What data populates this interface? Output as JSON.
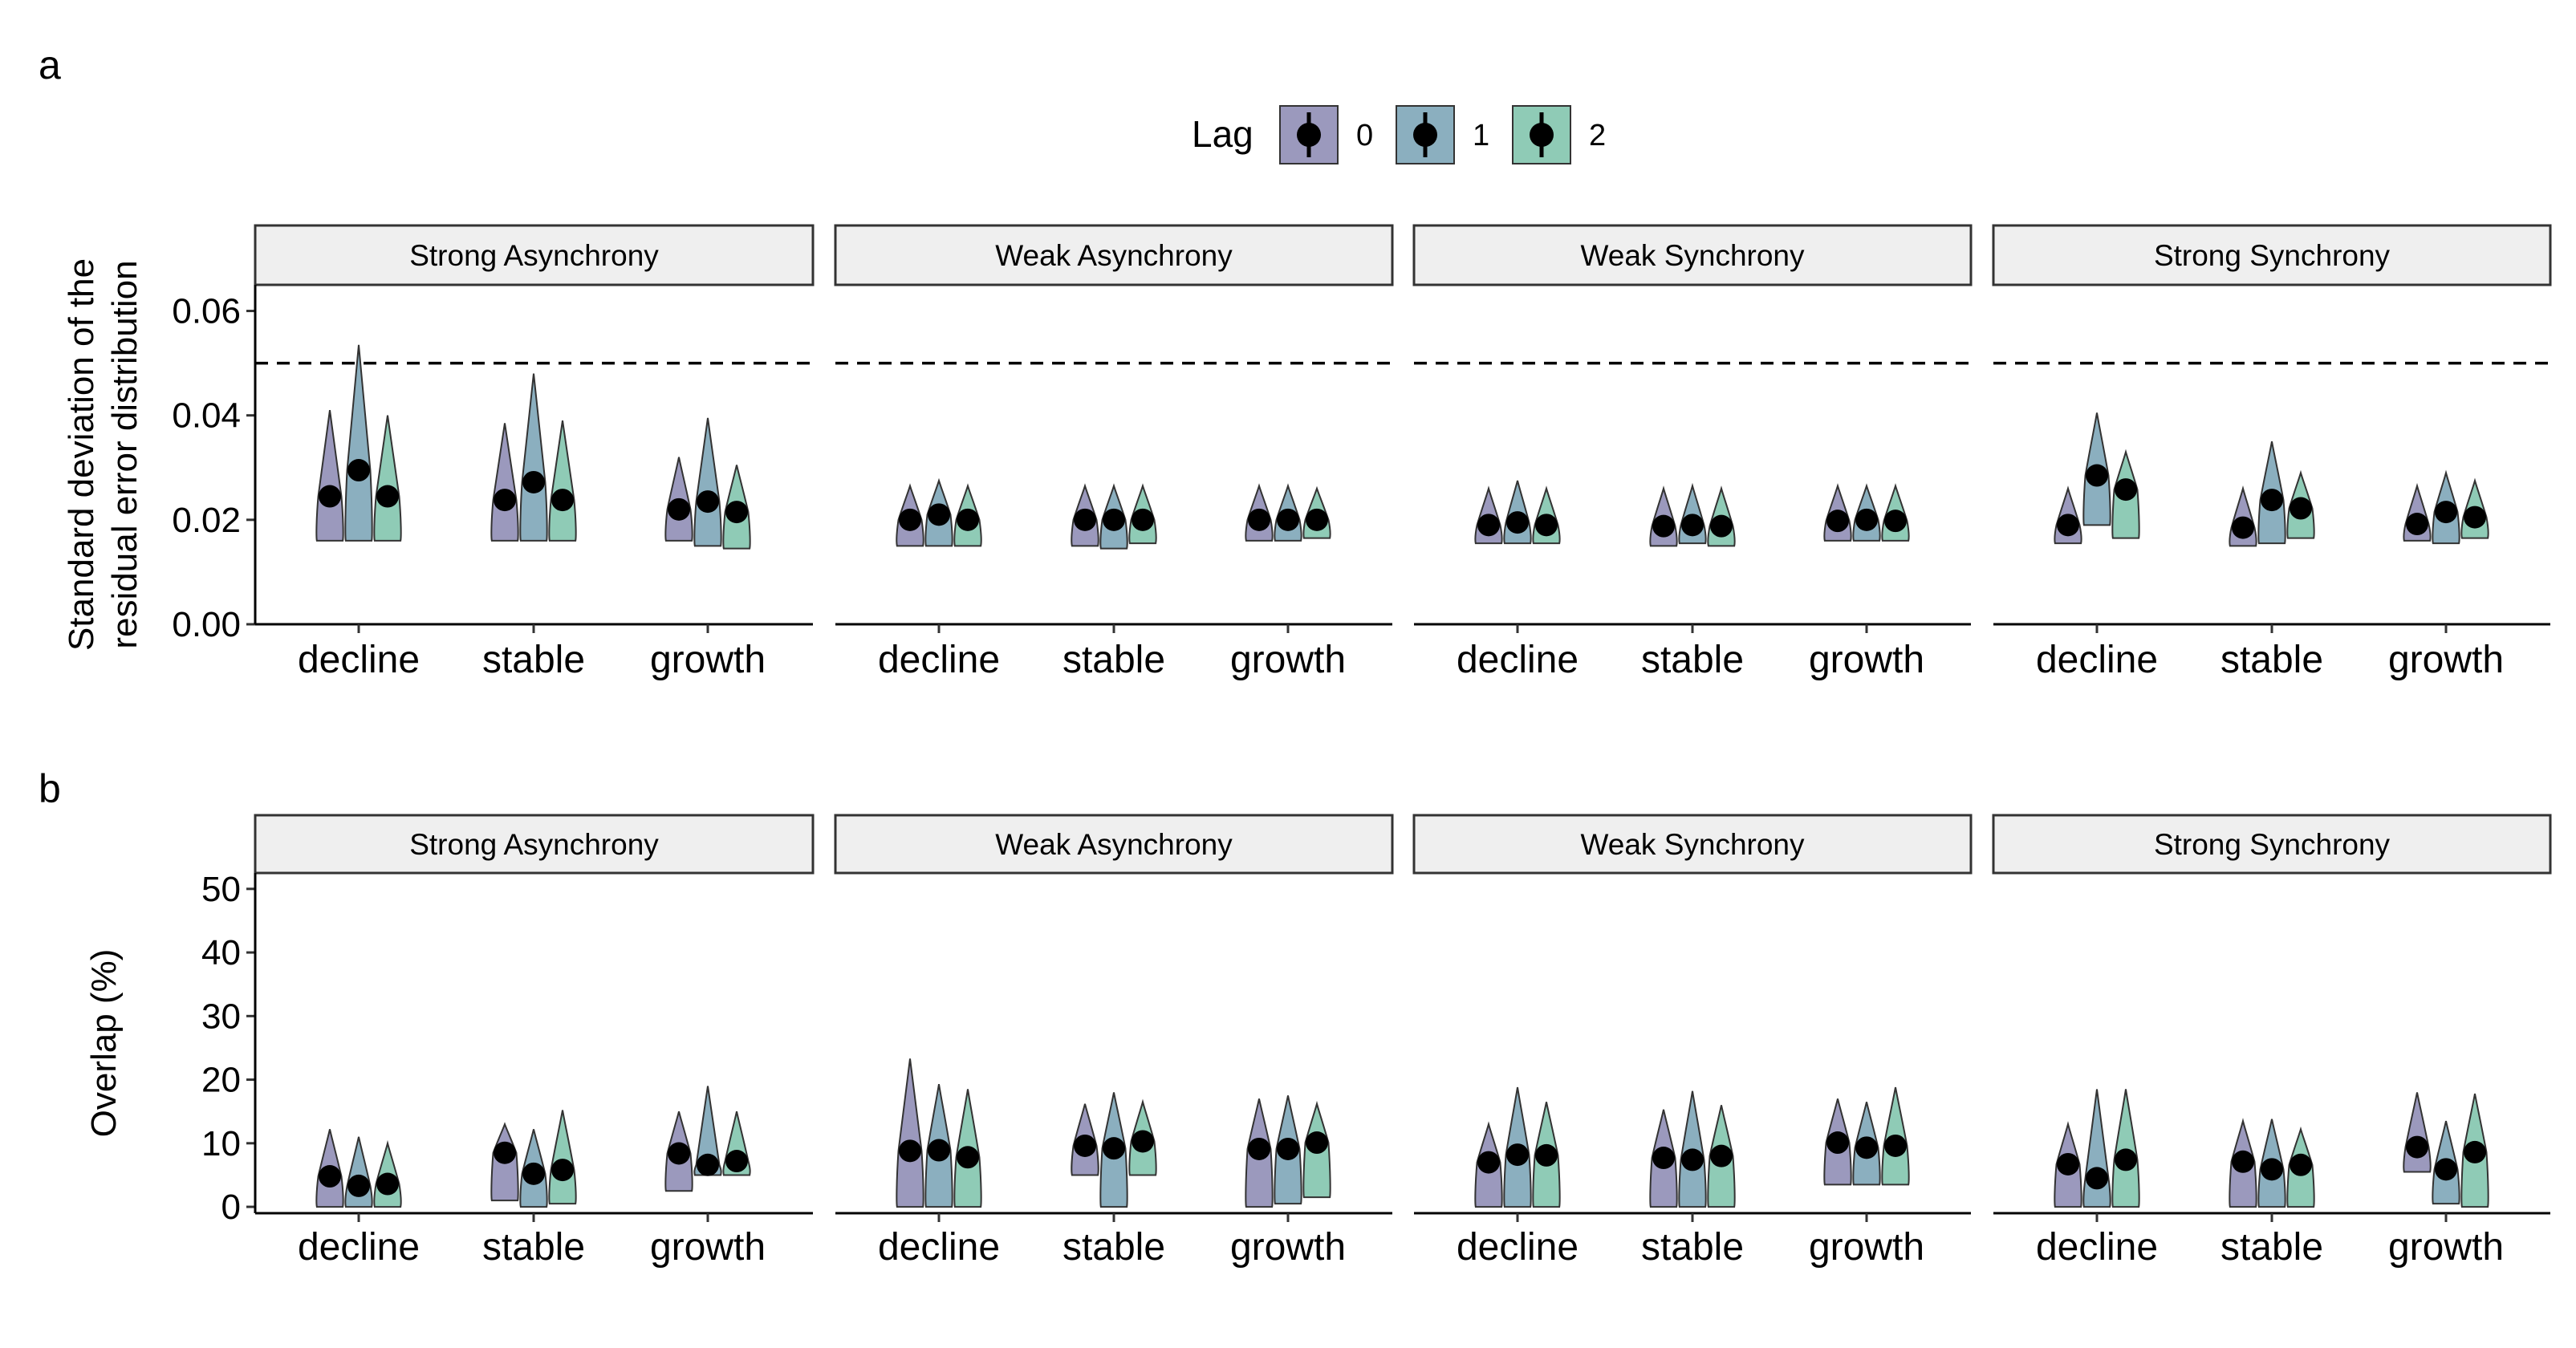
{
  "legend": {
    "title": "Lag",
    "items": [
      {
        "label": "0",
        "color": "#9B99BD"
      },
      {
        "label": "1",
        "color": "#8BAFBF"
      },
      {
        "label": "2",
        "color": "#8FCBB6"
      }
    ],
    "placement": "top"
  },
  "chart_data": [
    {
      "panel_label": "a",
      "type": "violin",
      "ylabel_line1": "Standard deviation of the",
      "ylabel_line2": "residual error distribution",
      "ylim": [
        0,
        0.065
      ],
      "yticks": [
        "0.00",
        "0.02",
        "0.04",
        "0.06"
      ],
      "ytick_values": [
        0,
        0.02,
        0.04,
        0.06
      ],
      "reference_line": 0.05,
      "facets": [
        {
          "title": "Strong Asynchrony",
          "categories": [
            "decline",
            "stable",
            "growth"
          ],
          "points": [
            [
              0.0245,
              0.0295,
              0.0245
            ],
            [
              0.0238,
              0.0272,
              0.0238
            ],
            [
              0.022,
              0.0235,
              0.0215
            ]
          ],
          "ranges": [
            [
              [
                0.016,
                0.041
              ],
              [
                0.016,
                0.0535
              ],
              [
                0.016,
                0.04
              ]
            ],
            [
              [
                0.016,
                0.0385
              ],
              [
                0.016,
                0.048
              ],
              [
                0.016,
                0.039
              ]
            ],
            [
              [
                0.016,
                0.032
              ],
              [
                0.015,
                0.0395
              ],
              [
                0.0145,
                0.0305
              ]
            ]
          ]
        },
        {
          "title": "Weak Asynchrony",
          "categories": [
            "decline",
            "stable",
            "growth"
          ],
          "points": [
            [
              0.02,
              0.021,
              0.02
            ],
            [
              0.02,
              0.02,
              0.02
            ],
            [
              0.02,
              0.02,
              0.02
            ]
          ],
          "ranges": [
            [
              [
                0.015,
                0.0265
              ],
              [
                0.015,
                0.0275
              ],
              [
                0.015,
                0.0265
              ]
            ],
            [
              [
                0.015,
                0.0265
              ],
              [
                0.0145,
                0.0265
              ],
              [
                0.0155,
                0.0265
              ]
            ],
            [
              [
                0.016,
                0.0265
              ],
              [
                0.016,
                0.0265
              ],
              [
                0.0165,
                0.026
              ]
            ]
          ]
        },
        {
          "title": "Weak Synchrony",
          "categories": [
            "decline",
            "stable",
            "growth"
          ],
          "points": [
            [
              0.019,
              0.0195,
              0.019
            ],
            [
              0.0188,
              0.019,
              0.0188
            ],
            [
              0.0198,
              0.02,
              0.0198
            ]
          ],
          "ranges": [
            [
              [
                0.0155,
                0.026
              ],
              [
                0.0155,
                0.0275
              ],
              [
                0.0155,
                0.026
              ]
            ],
            [
              [
                0.015,
                0.026
              ],
              [
                0.0155,
                0.0265
              ],
              [
                0.015,
                0.026
              ]
            ],
            [
              [
                0.016,
                0.0265
              ],
              [
                0.016,
                0.0265
              ],
              [
                0.016,
                0.0265
              ]
            ]
          ]
        },
        {
          "title": "Strong Synchrony",
          "categories": [
            "decline",
            "stable",
            "growth"
          ],
          "points": [
            [
              0.019,
              0.0285,
              0.0258
            ],
            [
              0.0185,
              0.0238,
              0.0222
            ],
            [
              0.0192,
              0.0215,
              0.0205
            ]
          ],
          "ranges": [
            [
              [
                0.0155,
                0.026
              ],
              [
                0.019,
                0.0405
              ],
              [
                0.0165,
                0.033
              ]
            ],
            [
              [
                0.015,
                0.026
              ],
              [
                0.0155,
                0.035
              ],
              [
                0.0165,
                0.029
              ]
            ],
            [
              [
                0.016,
                0.0265
              ],
              [
                0.0155,
                0.029
              ],
              [
                0.0165,
                0.0275
              ]
            ]
          ]
        }
      ]
    },
    {
      "panel_label": "b",
      "type": "violin",
      "ylabel_line1": "Overlap (%)",
      "ylabel_line2": "",
      "ylim": [
        -1,
        52.5
      ],
      "yticks": [
        "0",
        "10",
        "20",
        "30",
        "40",
        "50"
      ],
      "ytick_values": [
        0,
        10,
        20,
        30,
        40,
        50
      ],
      "reference_line": null,
      "facets": [
        {
          "title": "Strong Asynchrony",
          "categories": [
            "decline",
            "stable",
            "growth"
          ],
          "points": [
            [
              4.8,
              3.3,
              3.6
            ],
            [
              8.5,
              5.2,
              5.8
            ],
            [
              8.4,
              6.6,
              7.2
            ]
          ],
          "ranges": [
            [
              [
                0,
                12.2
              ],
              [
                0,
                11
              ],
              [
                0,
                10
              ]
            ],
            [
              [
                1,
                13
              ],
              [
                0,
                12.2
              ],
              [
                0.5,
                15.2
              ]
            ],
            [
              [
                2.5,
                15
              ],
              [
                5,
                19
              ],
              [
                5,
                15
              ]
            ]
          ]
        },
        {
          "title": "Weak Asynchrony",
          "categories": [
            "decline",
            "stable",
            "growth"
          ],
          "points": [
            [
              8.8,
              8.9,
              7.8
            ],
            [
              9.6,
              9.2,
              10.3
            ],
            [
              9.1,
              9.1,
              10.1
            ]
          ],
          "ranges": [
            [
              [
                0,
                23.3
              ],
              [
                0,
                19.3
              ],
              [
                0,
                18.5
              ]
            ],
            [
              [
                5,
                16.2
              ],
              [
                0,
                18
              ],
              [
                5,
                16.5
              ]
            ],
            [
              [
                0,
                17
              ],
              [
                0.5,
                17.5
              ],
              [
                1.5,
                16.2
              ]
            ]
          ]
        },
        {
          "title": "Weak Synchrony",
          "categories": [
            "decline",
            "stable",
            "growth"
          ],
          "points": [
            [
              7.0,
              8.2,
              8.1
            ],
            [
              7.7,
              7.4,
              8.0
            ],
            [
              10.1,
              9.3,
              9.6
            ]
          ],
          "ranges": [
            [
              [
                0,
                13
              ],
              [
                0,
                18.8
              ],
              [
                0,
                16.5
              ]
            ],
            [
              [
                0,
                15.3
              ],
              [
                0,
                18.2
              ],
              [
                0,
                16
              ]
            ],
            [
              [
                3.5,
                17
              ],
              [
                3.5,
                16.5
              ],
              [
                3.5,
                18.8
              ]
            ]
          ]
        },
        {
          "title": "Strong Synchrony",
          "categories": [
            "decline",
            "stable",
            "growth"
          ],
          "points": [
            [
              6.7,
              4.5,
              7.4
            ],
            [
              7.1,
              5.9,
              6.6
            ],
            [
              9.4,
              5.9,
              8.6
            ]
          ],
          "ranges": [
            [
              [
                0,
                13
              ],
              [
                0,
                18.5
              ],
              [
                0,
                18.5
              ]
            ],
            [
              [
                0,
                13.5
              ],
              [
                0,
                13.8
              ],
              [
                0,
                12.2
              ]
            ],
            [
              [
                5.5,
                18
              ],
              [
                0.5,
                13.5
              ],
              [
                0,
                17.8
              ]
            ]
          ]
        }
      ]
    }
  ]
}
